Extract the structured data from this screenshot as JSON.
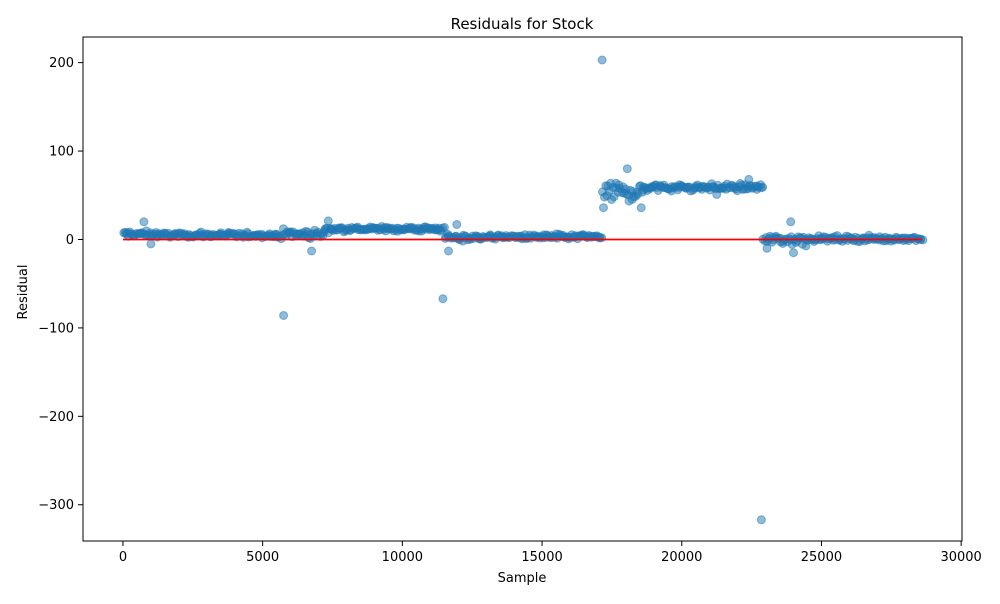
{
  "chart_data": {
    "type": "scatter",
    "title": "Residuals for Stock",
    "xlabel": "Sample",
    "ylabel": "Residual",
    "xlim": [
      -1430,
      30030
    ],
    "ylim": [
      -341,
      229
    ],
    "xticks": [
      0,
      5000,
      10000,
      15000,
      20000,
      25000,
      30000
    ],
    "yticks": [
      -300,
      -200,
      -100,
      0,
      100,
      200
    ],
    "xtick_labels": [
      "0",
      "5000",
      "10000",
      "15000",
      "20000",
      "25000",
      "30000"
    ],
    "ytick_labels": [
      "−300",
      "−200",
      "−100",
      "0",
      "100",
      "200"
    ],
    "grid": false,
    "zero_line": {
      "y": 0,
      "x_range": [
        0,
        28600
      ],
      "color": "#ff0000"
    },
    "point_color": "#1f77b4",
    "segments": [
      {
        "x_range": [
          0,
          1200
        ],
        "center": 6,
        "spread": 5
      },
      {
        "x_range": [
          1200,
          5500
        ],
        "center": 5,
        "spread": 3
      },
      {
        "x_range": [
          5500,
          7200
        ],
        "center": 6,
        "spread": 6
      },
      {
        "x_range": [
          7200,
          11500
        ],
        "center": 12,
        "spread": 3
      },
      {
        "x_range": [
          11500,
          12700
        ],
        "center": 2,
        "spread": 5
      },
      {
        "x_range": [
          12700,
          17150
        ],
        "center": 3,
        "spread": 3
      },
      {
        "x_range": [
          17150,
          18600
        ],
        "center": 54,
        "spread": 11
      },
      {
        "x_range": [
          18600,
          22900
        ],
        "center": 59,
        "spread": 4
      },
      {
        "x_range": [
          22900,
          24500
        ],
        "center": 0,
        "spread": 6
      },
      {
        "x_range": [
          24500,
          28600
        ],
        "center": 1,
        "spread": 3
      }
    ],
    "outliers": [
      {
        "x": 17150,
        "y": 203
      },
      {
        "x": 5750,
        "y": -86
      },
      {
        "x": 11450,
        "y": -67
      },
      {
        "x": 22850,
        "y": -317
      },
      {
        "x": 6750,
        "y": -13
      },
      {
        "x": 11650,
        "y": -13
      },
      {
        "x": 750,
        "y": 20
      },
      {
        "x": 7350,
        "y": 21
      },
      {
        "x": 11950,
        "y": 17
      },
      {
        "x": 18050,
        "y": 80
      },
      {
        "x": 18550,
        "y": 36
      },
      {
        "x": 17200,
        "y": 36
      },
      {
        "x": 23900,
        "y": 20
      },
      {
        "x": 24000,
        "y": -15
      },
      {
        "x": 23050,
        "y": -10
      },
      {
        "x": 22400,
        "y": 68
      },
      {
        "x": 21250,
        "y": 51
      },
      {
        "x": 1000,
        "y": -5
      }
    ]
  }
}
